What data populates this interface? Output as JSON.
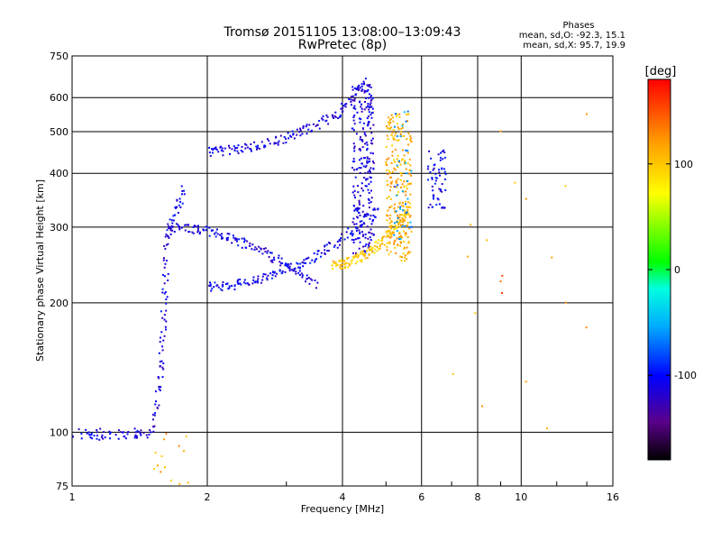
{
  "chart_data": {
    "type": "scatter",
    "title": "Tromsø 20151105 13:08:00–13:09:43",
    "subtitle": "RwPretec (8p)",
    "xlabel": "Frequency [MHz]",
    "ylabel": "Stationary phase Virtual Height [km]",
    "x_scale": "log",
    "y_scale": "log",
    "xlim": [
      1,
      16
    ],
    "ylim": [
      75,
      750
    ],
    "x_ticks": [
      1,
      2,
      4,
      6,
      8,
      10,
      16
    ],
    "x_tick_labels": [
      "1",
      "2",
      "4",
      "6",
      "8",
      "10",
      "16"
    ],
    "y_ticks": [
      75,
      100,
      200,
      300,
      400,
      500,
      600,
      750
    ],
    "y_tick_labels": [
      "75",
      "100",
      "200",
      "300",
      "400",
      "500",
      "600",
      "750"
    ],
    "grid": true,
    "stats": {
      "heading": "Phases",
      "o_line": "mean, sd,O: -92.3, 15.1",
      "x_line": "mean, sd,X:  95.7, 19.9"
    },
    "colorbar": {
      "label": "[deg]",
      "range": [
        -180,
        180
      ],
      "ticks": [
        -100,
        0,
        100
      ],
      "tick_labels": [
        "-100",
        "0",
        "100"
      ]
    },
    "trace_groups": [
      {
        "kind": "cluster",
        "x": [
          1.0,
          1.5
        ],
        "y": [
          96,
          102
        ],
        "phase": -110,
        "n": 60
      },
      {
        "kind": "line",
        "x": [
          1.5,
          1.58
        ],
        "y": [
          100,
          140
        ],
        "phase": -115,
        "n": 25
      },
      {
        "kind": "line",
        "x": [
          1.58,
          1.63
        ],
        "y": [
          140,
          290
        ],
        "phase": -110,
        "n": 45
      },
      {
        "kind": "line",
        "x": [
          1.63,
          1.78
        ],
        "y": [
          290,
          365
        ],
        "phase": -105,
        "n": 30
      },
      {
        "kind": "curve",
        "x": [
          1.62,
          3.5
        ],
        "y": [
          300,
          220
        ],
        "phase": -110,
        "n": 140
      },
      {
        "kind": "curve",
        "x": [
          2.0,
          4.8
        ],
        "y": [
          218,
          330
        ],
        "phase": -105,
        "n": 160
      },
      {
        "kind": "curve",
        "x": [
          2.0,
          4.0
        ],
        "y": [
          450,
          560
        ],
        "phase": -110,
        "n": 120
      },
      {
        "kind": "line",
        "x": [
          4.0,
          4.5
        ],
        "y": [
          560,
          650
        ],
        "phase": -112,
        "n": 25
      },
      {
        "kind": "cluster",
        "x": [
          4.2,
          4.7
        ],
        "y": [
          260,
          650
        ],
        "phase": -112,
        "n": 260
      },
      {
        "kind": "curve",
        "x": [
          3.8,
          5.6
        ],
        "y": [
          245,
          330
        ],
        "phase": 100,
        "n": 140
      },
      {
        "kind": "cluster",
        "x": [
          5.0,
          5.7
        ],
        "y": [
          250,
          550
        ],
        "phase": 110,
        "n": 260
      },
      {
        "kind": "cluster",
        "x": [
          5.2,
          5.7
        ],
        "y": [
          280,
          560
        ],
        "phase": -60,
        "n": 40
      },
      {
        "kind": "cluster",
        "x": [
          6.2,
          6.8
        ],
        "y": [
          330,
          460
        ],
        "phase": -105,
        "n": 60
      },
      {
        "kind": "cluster",
        "x": [
          1.5,
          1.85
        ],
        "y": [
          75,
          110
        ],
        "phase": 110,
        "n": 14
      },
      {
        "kind": "sparse",
        "x": [
          7.0,
          14.0
        ],
        "y": [
          90,
          620
        ],
        "phase": 110,
        "n": 16
      },
      {
        "kind": "sparse",
        "x": [
          9.0,
          9.1
        ],
        "y": [
          205,
          235
        ],
        "phase": 140,
        "n": 3
      }
    ]
  }
}
